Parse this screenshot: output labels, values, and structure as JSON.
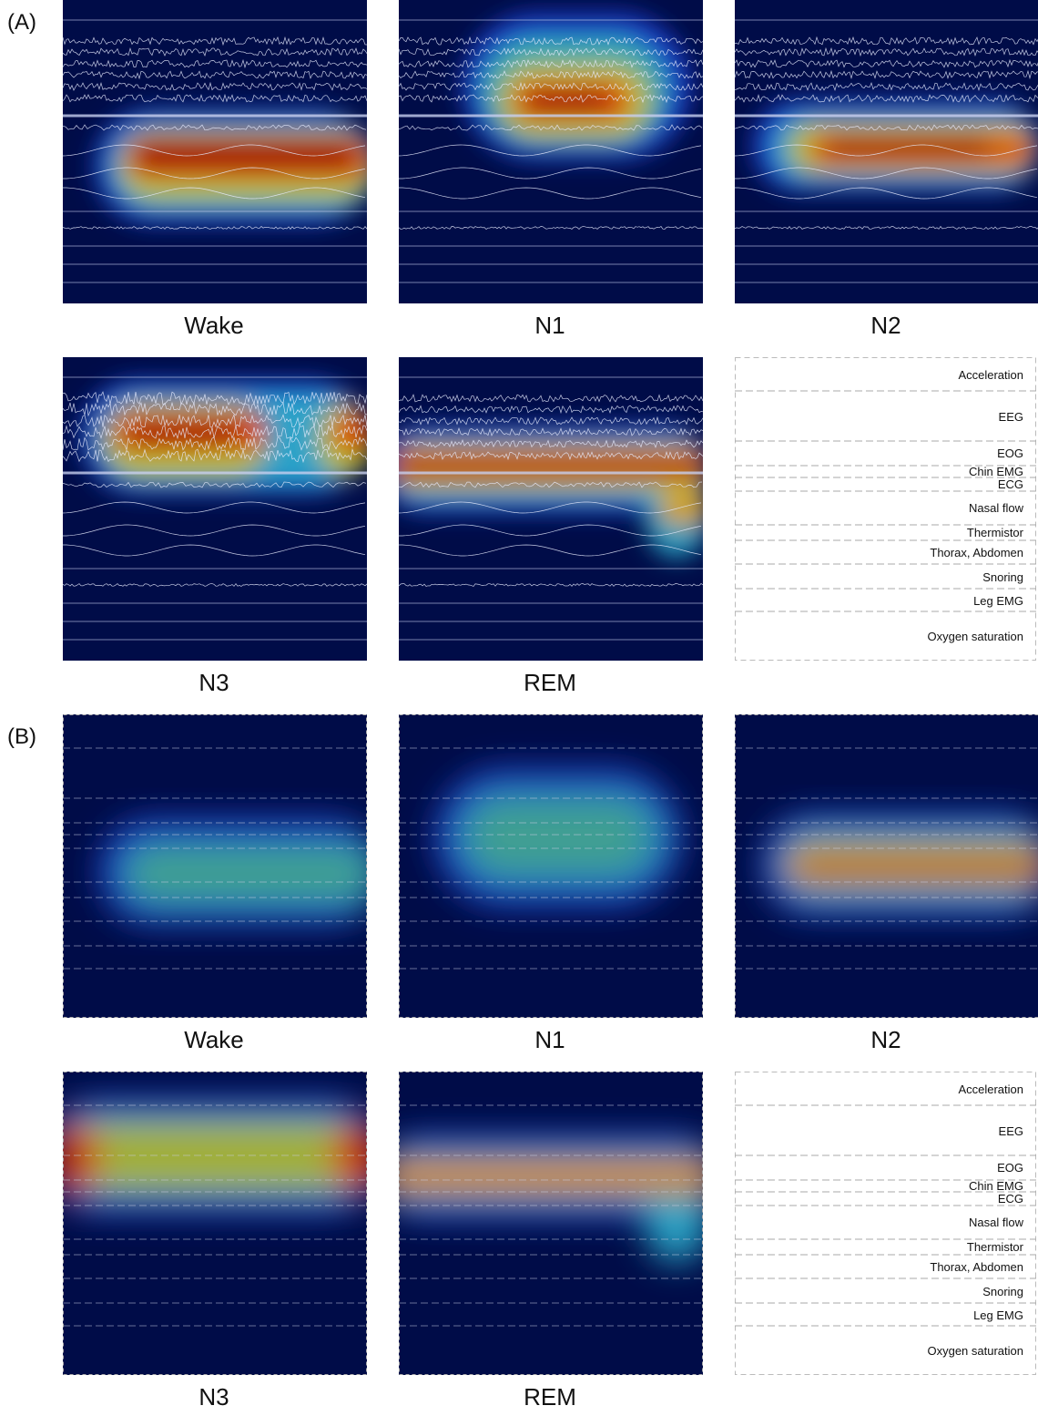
{
  "sections": [
    {
      "label": "(A)",
      "panels": [
        "Wake",
        "N1",
        "N2",
        "N3",
        "REM"
      ],
      "legend": [
        "Acceleration",
        "EEG",
        "EOG",
        "Chin EMG",
        "ECG",
        "Nasal flow",
        "Thermistor",
        "Thorax, Abdomen",
        "Snoring",
        "Leg EMG",
        "Oxygen saturation"
      ]
    },
    {
      "label": "(B)",
      "panels": [
        "Wake",
        "N1",
        "N2",
        "N3",
        "REM"
      ],
      "legend": [
        "Acceleration",
        "EEG",
        "EOG",
        "Chin EMG",
        "ECG",
        "Nasal flow",
        "Thermistor",
        "Thorax, Abdomen",
        "Snoring",
        "Leg EMG",
        "Oxygen saturation"
      ]
    }
  ]
}
